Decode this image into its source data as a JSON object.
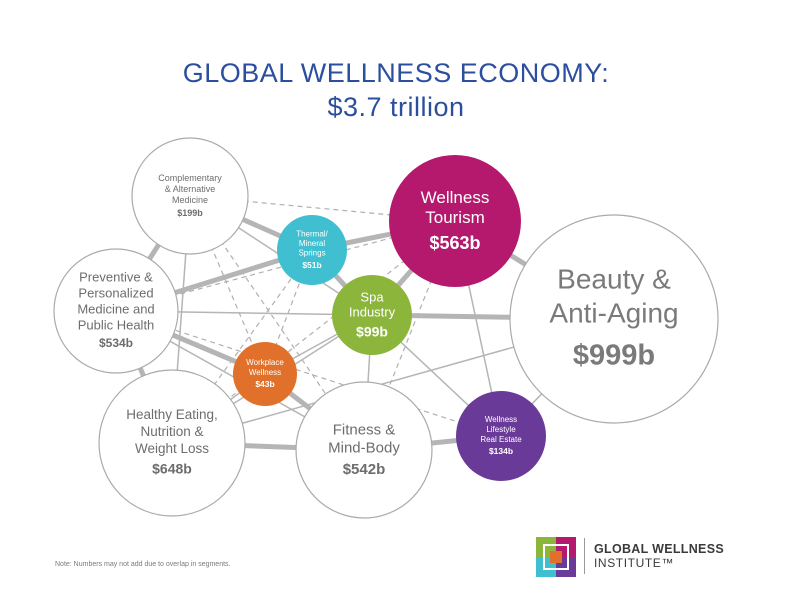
{
  "title": {
    "line1": "GLOBAL WELLNESS ECONOMY:",
    "line2": "$3.7 trillion"
  },
  "segments": [
    {
      "id": "cam",
      "label_lines": [
        "Complementary",
        "& Alternative",
        "Medicine"
      ],
      "value": "$199b",
      "color": "#ffffff",
      "text_color": "#6d6d6d"
    },
    {
      "id": "thermal",
      "label_lines": [
        "Thermal/",
        "Mineral",
        "Springs"
      ],
      "value": "$51b",
      "color": "#3fbfd0",
      "text_color": "#ffffff"
    },
    {
      "id": "tourism",
      "label_lines": [
        "Wellness",
        "Tourism"
      ],
      "value": "$563b",
      "color": "#b5196e",
      "text_color": "#ffffff"
    },
    {
      "id": "beauty",
      "label_lines": [
        "Beauty &",
        "Anti-Aging"
      ],
      "value": "$999b",
      "color": "#ffffff",
      "text_color": "#7a7a7a"
    },
    {
      "id": "preventive",
      "label_lines": [
        "Preventive &",
        "Personalized",
        "Medicine and",
        "Public Health"
      ],
      "value": "$534b",
      "color": "#ffffff",
      "text_color": "#6d6d6d"
    },
    {
      "id": "spa",
      "label_lines": [
        "Spa",
        "Industry"
      ],
      "value": "$99b",
      "color": "#8cb53c",
      "text_color": "#ffffff"
    },
    {
      "id": "workplace",
      "label_lines": [
        "Workplace",
        "Wellness"
      ],
      "value": "$43b",
      "color": "#e0702a",
      "text_color": "#ffffff"
    },
    {
      "id": "eating",
      "label_lines": [
        "Healthy Eating,",
        "Nutrition &",
        "Weight Loss"
      ],
      "value": "$648b",
      "color": "#ffffff",
      "text_color": "#6d6d6d"
    },
    {
      "id": "fitness",
      "label_lines": [
        "Fitness &",
        "Mind-Body"
      ],
      "value": "$542b",
      "color": "#ffffff",
      "text_color": "#6d6d6d"
    },
    {
      "id": "realestate",
      "label_lines": [
        "Wellness",
        "Lifestyle",
        "Real Estate"
      ],
      "value": "$134b",
      "color": "#6a3a98",
      "text_color": "#ffffff"
    }
  ],
  "links": [
    {
      "from": "cam",
      "to": "thermal",
      "style": "thick"
    },
    {
      "from": "cam",
      "to": "tourism",
      "style": "dashed"
    },
    {
      "from": "cam",
      "to": "preventive",
      "style": "thick"
    },
    {
      "from": "cam",
      "to": "spa",
      "style": "thin"
    },
    {
      "from": "cam",
      "to": "workplace",
      "style": "dashed"
    },
    {
      "from": "cam",
      "to": "eating",
      "style": "thin"
    },
    {
      "from": "cam",
      "to": "fitness",
      "style": "dashed"
    },
    {
      "from": "thermal",
      "to": "tourism",
      "style": "thick"
    },
    {
      "from": "thermal",
      "to": "preventive",
      "style": "thick"
    },
    {
      "from": "thermal",
      "to": "spa",
      "style": "thick"
    },
    {
      "from": "thermal",
      "to": "workplace",
      "style": "dashed"
    },
    {
      "from": "thermal",
      "to": "eating",
      "style": "dashed"
    },
    {
      "from": "tourism",
      "to": "beauty",
      "style": "thick"
    },
    {
      "from": "tourism",
      "to": "spa",
      "style": "thick"
    },
    {
      "from": "tourism",
      "to": "preventive",
      "style": "dashed"
    },
    {
      "from": "tourism",
      "to": "realestate",
      "style": "thin"
    },
    {
      "from": "tourism",
      "to": "fitness",
      "style": "dashed"
    },
    {
      "from": "tourism",
      "to": "eating",
      "style": "dashed"
    },
    {
      "from": "preventive",
      "to": "spa",
      "style": "thin"
    },
    {
      "from": "preventive",
      "to": "workplace",
      "style": "thick"
    },
    {
      "from": "preventive",
      "to": "eating",
      "style": "thick"
    },
    {
      "from": "preventive",
      "to": "fitness",
      "style": "thin"
    },
    {
      "from": "preventive",
      "to": "realestate",
      "style": "dashed"
    },
    {
      "from": "spa",
      "to": "beauty",
      "style": "thick"
    },
    {
      "from": "spa",
      "to": "workplace",
      "style": "thin"
    },
    {
      "from": "spa",
      "to": "eating",
      "style": "thin"
    },
    {
      "from": "spa",
      "to": "fitness",
      "style": "thin"
    },
    {
      "from": "spa",
      "to": "realestate",
      "style": "thin"
    },
    {
      "from": "workplace",
      "to": "fitness",
      "style": "thick"
    },
    {
      "from": "workplace",
      "to": "eating",
      "style": "thin"
    },
    {
      "from": "eating",
      "to": "fitness",
      "style": "thick"
    },
    {
      "from": "fitness",
      "to": "realestate",
      "style": "thick"
    },
    {
      "from": "beauty",
      "to": "realestate",
      "style": "thin"
    },
    {
      "from": "beauty",
      "to": "eating",
      "style": "thin"
    }
  ],
  "note": "Note: Numbers may not add due to overlap in segments.",
  "logo": {
    "name": "GLOBAL WELLNESS",
    "subtitle": "INSTITUTE™"
  }
}
